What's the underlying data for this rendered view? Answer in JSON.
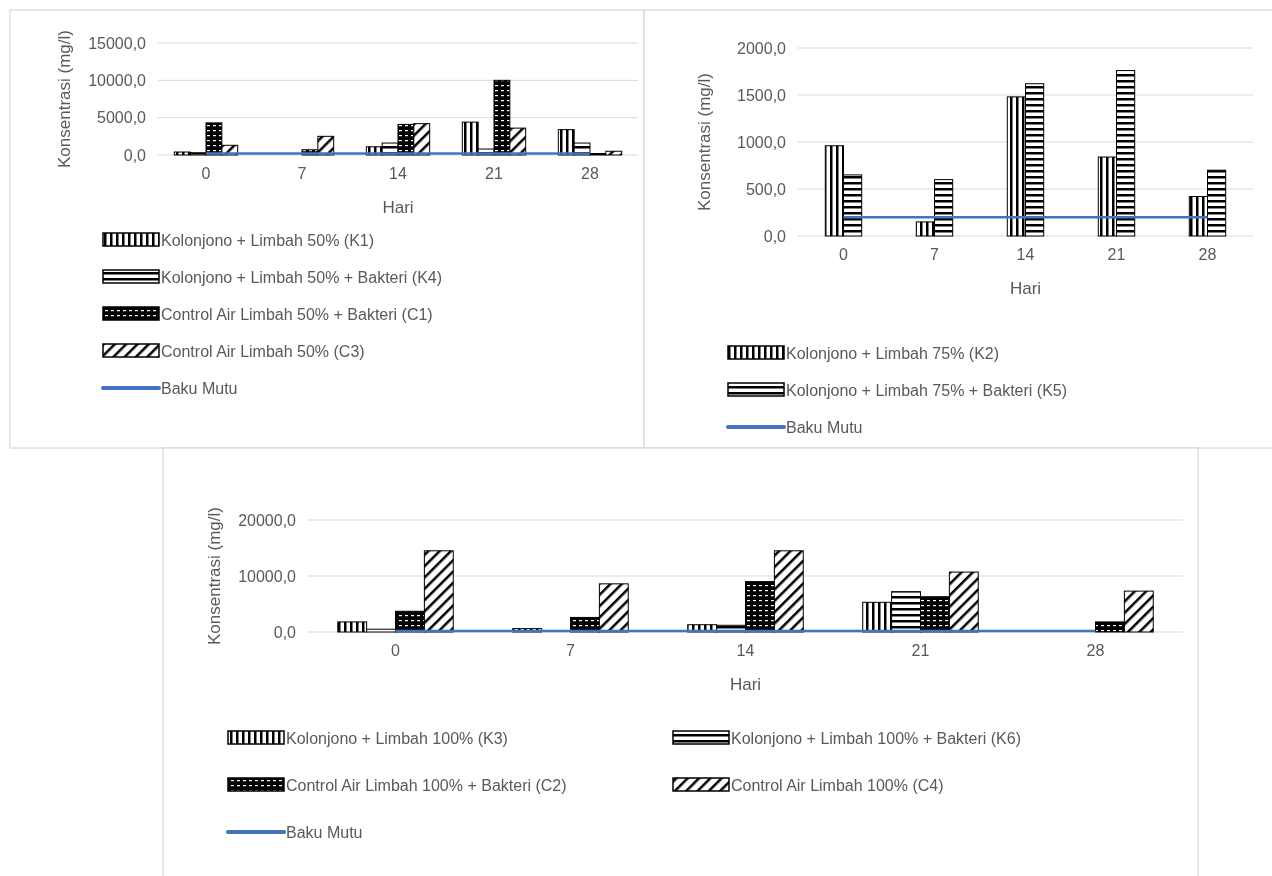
{
  "chart_data": [
    {
      "type": "bar",
      "xlabel": "Hari",
      "ylabel": "Konsentrasi (mg/l)",
      "categories": [
        "0",
        "7",
        "14",
        "21",
        "28"
      ],
      "ylim": [
        0,
        15000
      ],
      "yticks": [
        {
          "value": 0,
          "label": "0,0"
        },
        {
          "value": 5000,
          "label": "5000,0"
        },
        {
          "value": 10000,
          "label": "10000,0"
        },
        {
          "value": 15000,
          "label": "15000,0"
        }
      ],
      "grid": "y",
      "legend": "bottom",
      "series": [
        {
          "name": "Kolonjono + Limbah 50% (K1)",
          "color": "#000000",
          "values": [
            400,
            0,
            1100,
            4400,
            3400
          ]
        },
        {
          "name": "Kolonjono + Limbah 50% + Bakteri (K4)",
          "color": "#000000",
          "values": [
            300,
            0,
            1600,
            800,
            1600
          ]
        },
        {
          "name": "Control Air Limbah 50% + Bakteri (C1)",
          "color": "#000000",
          "values": [
            4300,
            700,
            4100,
            10000,
            200
          ]
        },
        {
          "name": "Control Air Limbah 50% (C3)",
          "color": "#000000",
          "values": [
            1300,
            2500,
            4200,
            3600,
            500
          ]
        },
        {
          "name": "Baku Mutu",
          "type": "line",
          "color": "#4472c4",
          "values": [
            200,
            200,
            200,
            200,
            200
          ]
        }
      ]
    },
    {
      "type": "bar",
      "xlabel": "Hari",
      "ylabel": "Konsentrasi (mg/l)",
      "categories": [
        "0",
        "7",
        "14",
        "21",
        "28"
      ],
      "ylim": [
        0,
        2000
      ],
      "yticks": [
        {
          "value": 0,
          "label": "0,0"
        },
        {
          "value": 500,
          "label": "500,0"
        },
        {
          "value": 1000,
          "label": "1000,0"
        },
        {
          "value": 1500,
          "label": "1500,0"
        },
        {
          "value": 2000,
          "label": "2000,0"
        }
      ],
      "grid": "y",
      "legend": "bottom",
      "series": [
        {
          "name": "Kolonjono + Limbah 75% (K2)",
          "color": "#000000",
          "values": [
            960,
            150,
            1480,
            840,
            420
          ]
        },
        {
          "name": "Kolonjono + Limbah 75% + Bakteri (K5)",
          "color": "#000000",
          "values": [
            650,
            600,
            1620,
            1760,
            700
          ]
        },
        {
          "name": "Baku Mutu",
          "type": "line",
          "color": "#4472c4",
          "values": [
            200,
            200,
            200,
            200,
            200
          ]
        }
      ]
    },
    {
      "type": "bar",
      "xlabel": "Hari",
      "ylabel": "Konsentrasi (mg/l)",
      "categories": [
        "0",
        "7",
        "14",
        "21",
        "28"
      ],
      "ylim": [
        0,
        20000
      ],
      "yticks": [
        {
          "value": 0,
          "label": "0,0"
        },
        {
          "value": 10000,
          "label": "10000,0"
        },
        {
          "value": 20000,
          "label": "20000,0"
        }
      ],
      "grid": "y",
      "legend": "bottom",
      "series": [
        {
          "name": "Kolonjono + Limbah 100% (K3)",
          "color": "#000000",
          "values": [
            1800,
            600,
            1300,
            5300,
            0
          ]
        },
        {
          "name": "Kolonjono + Limbah 100% + Bakteri (K6)",
          "color": "#000000",
          "values": [
            500,
            0,
            1200,
            7200,
            0
          ]
        },
        {
          "name": "Control Air Limbah 100% + Bakteri (C2)",
          "color": "#000000",
          "values": [
            3700,
            2600,
            9000,
            6300,
            1800
          ]
        },
        {
          "name": "Control Air Limbah 100% (C4)",
          "color": "#000000",
          "values": [
            14500,
            8600,
            14500,
            10700,
            7300
          ]
        },
        {
          "name": "Baku Mutu",
          "type": "line",
          "color": "#4472c4",
          "values": [
            200,
            200,
            200,
            200,
            200
          ]
        }
      ]
    }
  ]
}
